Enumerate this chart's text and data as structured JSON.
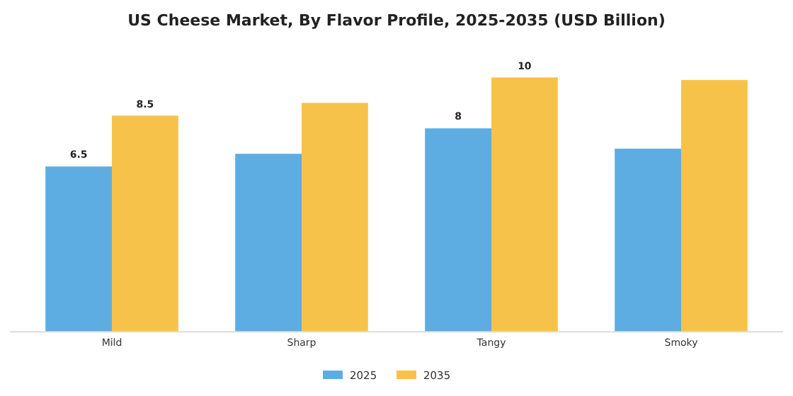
{
  "chart_data": {
    "type": "bar",
    "title": "US Cheese Market, By Flavor Profile, 2025-2035 (USD Billion)",
    "categories": [
      "Mild",
      "Sharp",
      "Tangy",
      "Smoky"
    ],
    "series": [
      {
        "name": "2025",
        "color": "#5dade2",
        "values": [
          6.5,
          7.0,
          8,
          7.2
        ],
        "value_labels": [
          "6.5",
          null,
          "8",
          null
        ]
      },
      {
        "name": "2035",
        "color": "#f7c24a",
        "values": [
          8.5,
          9.0,
          10,
          9.9
        ],
        "value_labels": [
          "8.5",
          null,
          "10",
          null
        ]
      }
    ],
    "legend": "bottom"
  }
}
